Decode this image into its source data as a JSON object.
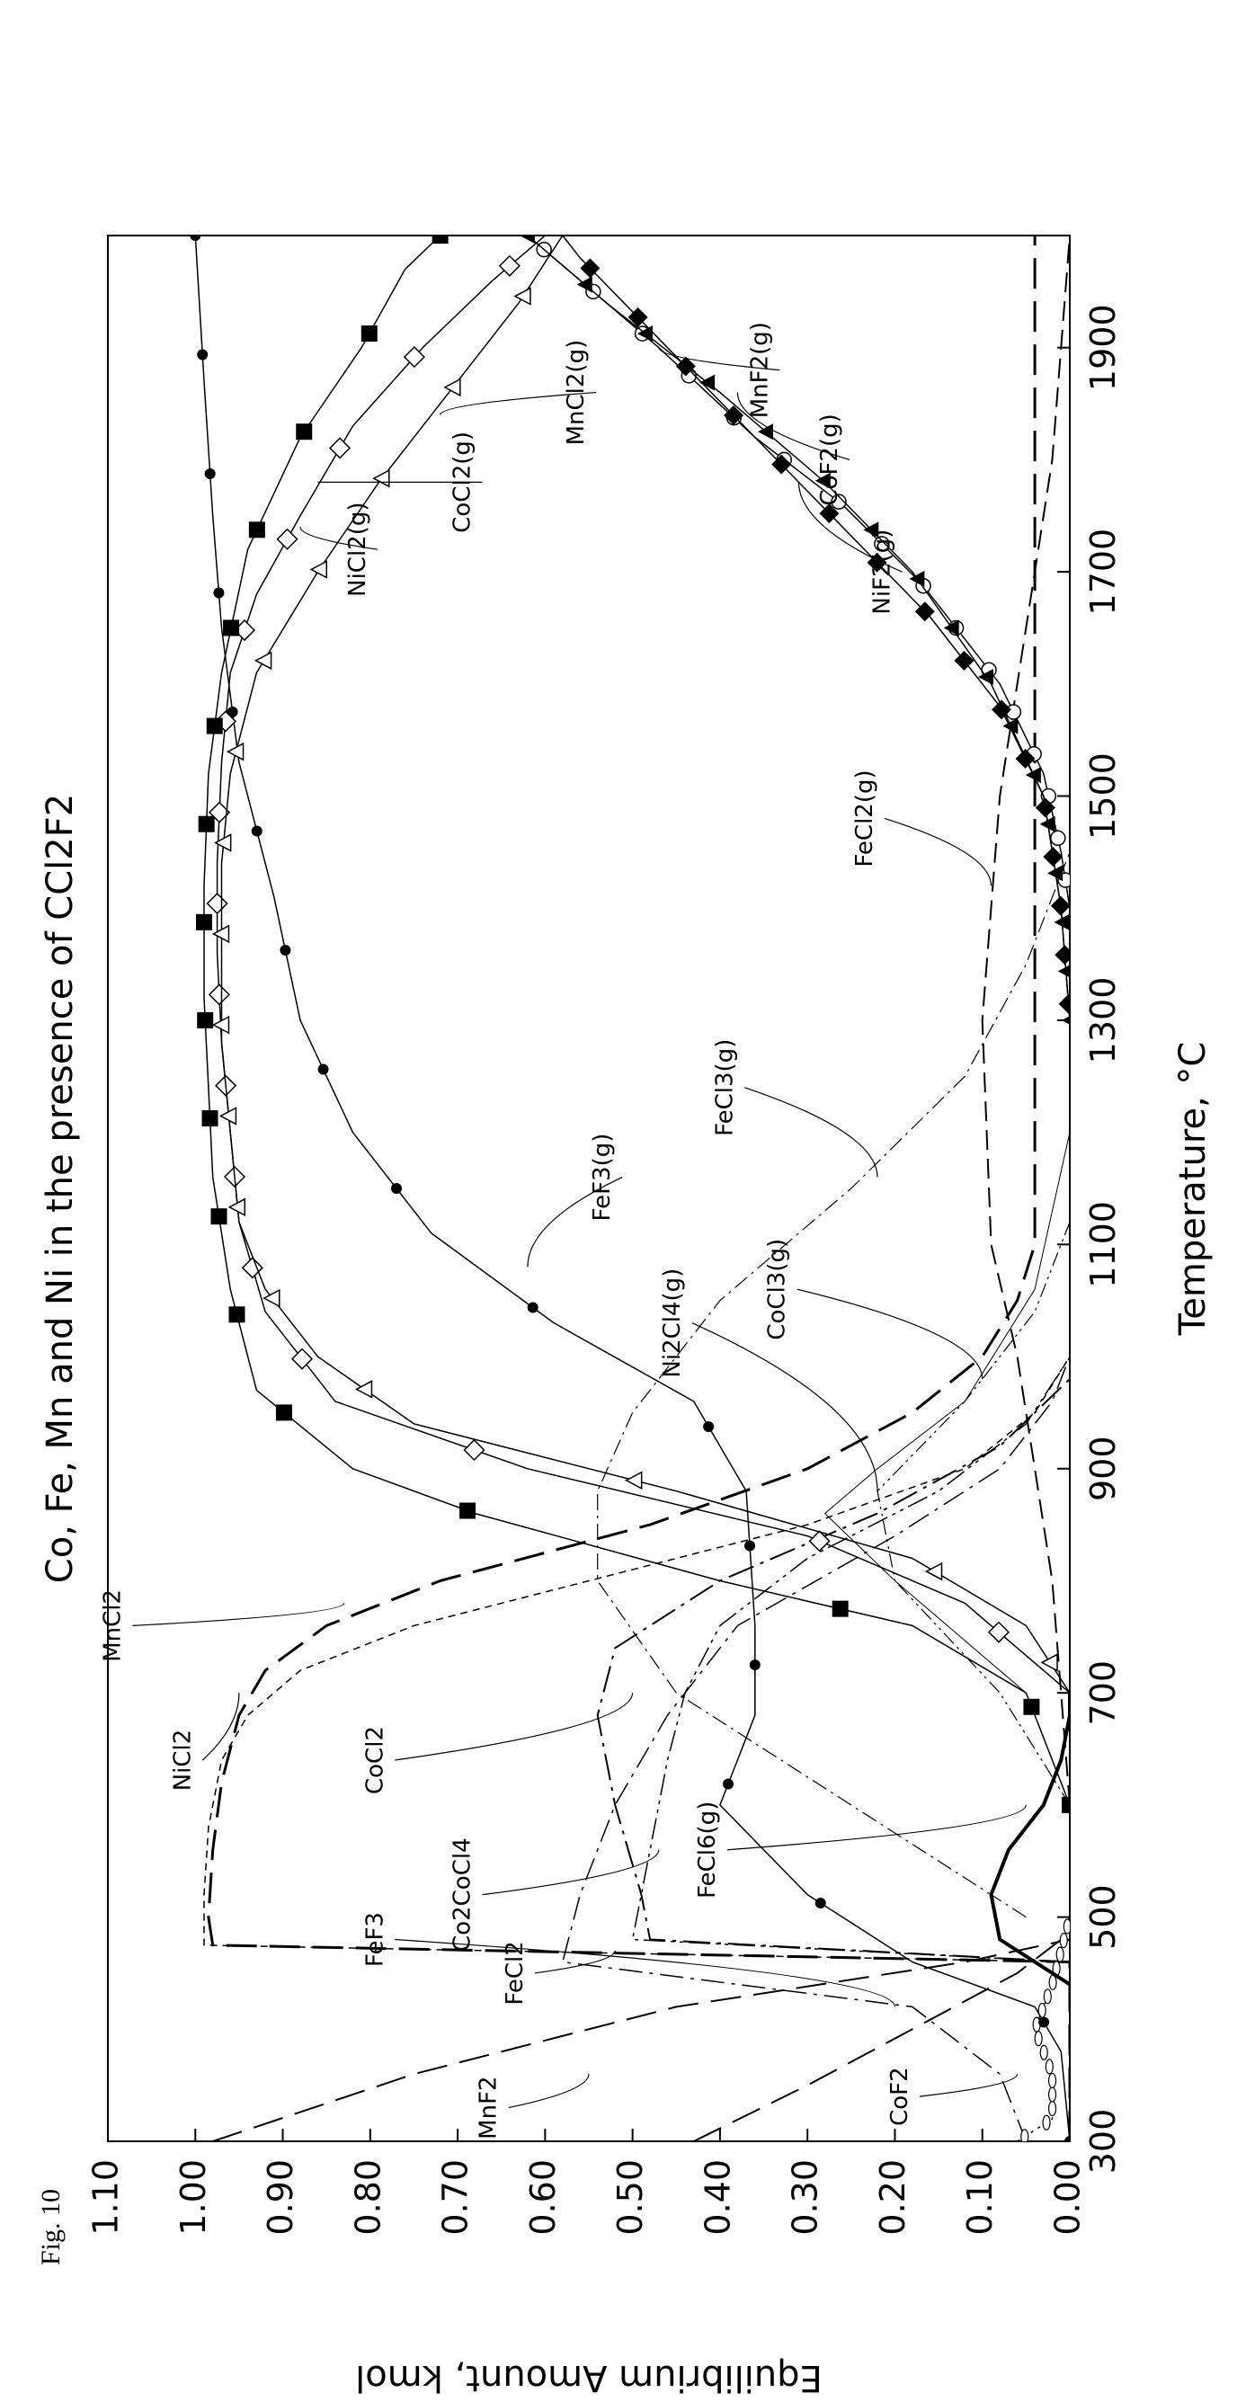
{
  "figure_label": "Fig. 10",
  "chart_data": {
    "type": "line",
    "title": "Co, Fe, Mn and Ni in the presence of CCl2F2",
    "xlabel": "Temperature, °C",
    "ylabel": "Equilibrium Amount, kmol",
    "xlim": [
      300,
      2000
    ],
    "ylim": [
      0,
      1.1
    ],
    "xticks": [
      300,
      500,
      700,
      900,
      1100,
      1300,
      1500,
      1700,
      1900
    ],
    "yticks": [
      "0.00",
      "0.10",
      "0.20",
      "0.30",
      "0.40",
      "0.50",
      "0.60",
      "0.70",
      "0.80",
      "0.90",
      "1.00",
      "1.10"
    ],
    "grid": false,
    "series": [
      {
        "name": "MnCl2",
        "style": "longdash",
        "width": 3,
        "marker": null,
        "x": [
          300,
          460,
          475,
          500,
          560,
          620,
          680,
          720,
          760,
          800,
          850,
          900,
          950,
          1000,
          1050,
          1100,
          2000
        ],
        "y": [
          0,
          0,
          0.98,
          0.985,
          0.98,
          0.97,
          0.95,
          0.92,
          0.85,
          0.72,
          0.48,
          0.3,
          0.18,
          0.1,
          0.06,
          0.04,
          0.04
        ]
      },
      {
        "name": "NiCl2",
        "style": "shortdash",
        "width": 1.5,
        "marker": null,
        "x": [
          300,
          460,
          475,
          520,
          580,
          640,
          680,
          720,
          760,
          800,
          850,
          900,
          950,
          1000
        ],
        "y": [
          0,
          0,
          0.99,
          0.99,
          0.985,
          0.97,
          0.94,
          0.88,
          0.75,
          0.55,
          0.3,
          0.12,
          0.04,
          0
        ],
        "note": "plateau near 1.0 for 300-460"
      },
      {
        "name": "FeF3",
        "style": "longdash",
        "width": 2,
        "marker": null,
        "x": [
          300,
          350,
          400,
          450,
          480,
          500
        ],
        "y": [
          0.43,
          0.3,
          0.18,
          0.06,
          0.01,
          0
        ]
      },
      {
        "name": "MnF2",
        "style": "longdash",
        "width": 2,
        "marker": null,
        "x": [
          300,
          360,
          420,
          460,
          480
        ],
        "y": [
          0.98,
          0.75,
          0.45,
          0.12,
          0
        ]
      },
      {
        "name": "FeCl2",
        "style": "dashdot",
        "width": 1.5,
        "marker": null,
        "x": [
          300,
          360,
          420,
          460,
          520,
          600,
          680,
          760,
          840,
          900,
          960,
          1000
        ],
        "y": [
          0.05,
          0.08,
          0.18,
          0.58,
          0.56,
          0.52,
          0.46,
          0.38,
          0.2,
          0.08,
          0.02,
          0
        ]
      },
      {
        "name": "CoCl2",
        "style": "dashdot2",
        "width": 2,
        "marker": null,
        "x": [
          300,
          460,
          480,
          520,
          600,
          680,
          740,
          800,
          860,
          920,
          980
        ],
        "y": [
          0,
          0,
          0.48,
          0.49,
          0.52,
          0.54,
          0.52,
          0.4,
          0.22,
          0.08,
          0
        ]
      },
      {
        "name": "Co2CoCl4",
        "style": "dashdotdot",
        "width": 1.5,
        "marker": null,
        "x": [
          300,
          460,
          480,
          560,
          640,
          700,
          760,
          820,
          880,
          940,
          1000
        ],
        "y": [
          0,
          0,
          0.5,
          0.48,
          0.46,
          0.44,
          0.4,
          0.3,
          0.15,
          0.05,
          0
        ]
      },
      {
        "name": "CoF2",
        "style": "dotted",
        "width": 1.5,
        "marker": "ellipse",
        "x": [
          300,
          320,
          360,
          400,
          440,
          470,
          500
        ],
        "y": [
          0.06,
          0.02,
          0.02,
          0.04,
          0.02,
          0.01,
          0
        ]
      },
      {
        "name": "FeCl6(g)",
        "style": "solid",
        "width": 4,
        "marker": null,
        "x": [
          440,
          480,
          520,
          560,
          600,
          640,
          680,
          700
        ],
        "y": [
          0,
          0.08,
          0.09,
          0.07,
          0.03,
          0.01,
          0,
          0
        ]
      },
      {
        "name": "FeF3(g)",
        "style": "solid",
        "width": 1.5,
        "marker": "circle",
        "x": [
          300,
          380,
          420,
          460,
          520,
          600,
          680,
          760,
          880,
          960,
          1030,
          1110,
          1200,
          1300,
          1410,
          1530,
          1650,
          1750,
          1870,
          2000
        ],
        "y": [
          0,
          0.01,
          0.04,
          0.18,
          0.3,
          0.4,
          0.36,
          0.36,
          0.37,
          0.43,
          0.59,
          0.73,
          0.82,
          0.88,
          0.91,
          0.95,
          0.97,
          0.98,
          0.99,
          1.0
        ]
      },
      {
        "name": "FeCl3(g)",
        "style": "dashdotthin",
        "width": 1.2,
        "marker": null,
        "x": [
          500,
          600,
          700,
          800,
          880,
          950,
          1050,
          1150,
          1250,
          1350,
          1450
        ],
        "y": [
          0.05,
          0.25,
          0.45,
          0.54,
          0.54,
          0.5,
          0.4,
          0.25,
          0.12,
          0.05,
          0
        ]
      },
      {
        "name": "Ni2Cl4(g)",
        "style": "thin",
        "width": 1,
        "marker": null,
        "x": [
          600,
          700,
          800,
          860,
          900,
          960,
          1060,
          1200
        ],
        "y": [
          0,
          0.05,
          0.2,
          0.28,
          0.22,
          0.12,
          0.04,
          0
        ]
      },
      {
        "name": "CoCl3(g)",
        "style": "dashdotdotthin",
        "width": 1.2,
        "marker": null,
        "x": [
          600,
          700,
          800,
          880,
          960,
          1040,
          1120
        ],
        "y": [
          0,
          0.08,
          0.2,
          0.22,
          0.12,
          0.04,
          0
        ]
      },
      {
        "name": "FeCl2(g)",
        "style": "medlongdash",
        "width": 2,
        "marker": null,
        "x": [
          600,
          800,
          900,
          1000,
          1100,
          1300,
          1500,
          1600,
          1700,
          1800,
          1900,
          2000
        ],
        "y": [
          0,
          0.02,
          0.04,
          0.06,
          0.09,
          0.1,
          0.08,
          0.06,
          0.04,
          0.02,
          0.01,
          0
        ]
      },
      {
        "name": "NiCl2(g)",
        "style": "solid",
        "width": 1.5,
        "marker": "diamond-open",
        "x": [
          700,
          720,
          780,
          840,
          900,
          960,
          1040,
          1120,
          1200,
          1280,
          1360,
          1440,
          1530,
          1610,
          1680,
          1750,
          1830,
          1900,
          1960,
          2000
        ],
        "y": [
          0,
          0.03,
          0.12,
          0.3,
          0.62,
          0.84,
          0.92,
          0.95,
          0.96,
          0.97,
          0.975,
          0.975,
          0.97,
          0.96,
          0.93,
          0.88,
          0.82,
          0.74,
          0.66,
          0.6
        ]
      },
      {
        "name": "CoCl2(g)",
        "style": "solid",
        "width": 1.5,
        "marker": "square-filled",
        "x": [
          600,
          700,
          760,
          800,
          860,
          900,
          970,
          1060,
          1160,
          1240,
          1320,
          1420,
          1520,
          1610,
          1720,
          1820,
          1900,
          1970,
          2000
        ],
        "y": [
          0,
          0.05,
          0.18,
          0.4,
          0.68,
          0.82,
          0.93,
          0.96,
          0.98,
          0.985,
          0.99,
          0.99,
          0.985,
          0.97,
          0.94,
          0.88,
          0.81,
          0.76,
          0.72
        ]
      },
      {
        "name": "MnCl2(g)",
        "style": "solid",
        "width": 1.5,
        "marker": "triangle-open",
        "x": [
          700,
          760,
          820,
          880,
          940,
          1000,
          1060,
          1120,
          1200,
          1280,
          1360,
          1440,
          1520,
          1610,
          1700,
          1780,
          1860,
          1940,
          2000
        ],
        "y": [
          0,
          0.05,
          0.18,
          0.45,
          0.75,
          0.86,
          0.92,
          0.95,
          0.96,
          0.97,
          0.97,
          0.97,
          0.96,
          0.93,
          0.86,
          0.79,
          0.71,
          0.63,
          0.58
        ]
      },
      {
        "name": "MnF2(g)",
        "style": "solid",
        "width": 1.5,
        "marker": "circle-open",
        "x": [
          1400,
          1450,
          1520,
          1600,
          1690,
          1760,
          1820,
          1900,
          1960,
          2000
        ],
        "y": [
          0,
          0.01,
          0.03,
          0.08,
          0.17,
          0.26,
          0.36,
          0.47,
          0.56,
          0.62
        ]
      },
      {
        "name": "CoF2(g)",
        "style": "solid",
        "width": 1.5,
        "marker": "triangle-filled",
        "x": [
          1300,
          1400,
          1500,
          1600,
          1700,
          1780,
          1860,
          1940,
          2000
        ],
        "y": [
          0,
          0.01,
          0.03,
          0.09,
          0.18,
          0.28,
          0.4,
          0.53,
          0.62
        ]
      },
      {
        "name": "NiF2(g)",
        "style": "solid",
        "width": 1.5,
        "marker": "diamond-filled",
        "x": [
          1300,
          1400,
          1500,
          1580,
          1660,
          1740,
          1820,
          1900,
          1980,
          2000
        ],
        "y": [
          0,
          0.01,
          0.03,
          0.08,
          0.16,
          0.26,
          0.36,
          0.46,
          0.56,
          0.58
        ]
      }
    ]
  }
}
